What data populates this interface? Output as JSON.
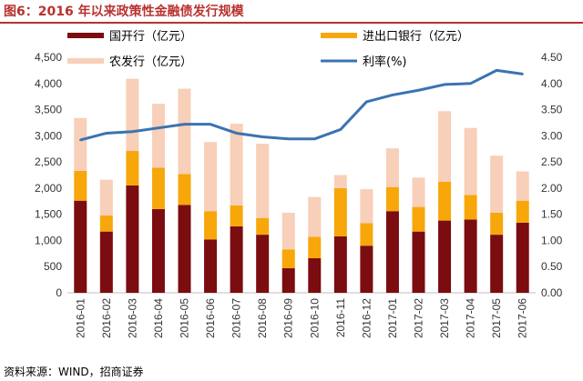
{
  "title": "图6：2016 年以来政策性金融债发行规模",
  "source": "资料来源：WIND，招商证券",
  "colors": {
    "guokai": "#7b0c10",
    "jinchukou": "#f7a70a",
    "nongfa": "#f8cfb8",
    "rate": "#3b73b1",
    "title": "#b8312f"
  },
  "chart_data": {
    "type": "bar",
    "stacked": true,
    "categories": [
      "2016-01",
      "2016-02",
      "2016-03",
      "2016-04",
      "2016-05",
      "2016-06",
      "2016-07",
      "2016-08",
      "2016-09",
      "2016-10",
      "2016-11",
      "2016-12",
      "2017-01",
      "2017-02",
      "2017-03",
      "2017-04",
      "2017-05",
      "2017-06"
    ],
    "series": [
      {
        "name": "国开行（亿元）",
        "key": "guokai",
        "axis": "left",
        "values": [
          1760,
          1170,
          2050,
          1600,
          1680,
          1020,
          1270,
          1110,
          470,
          660,
          1080,
          900,
          1560,
          1170,
          1380,
          1400,
          1110,
          1340
        ]
      },
      {
        "name": "进出口银行（亿元）",
        "key": "jinchukou",
        "axis": "left",
        "values": [
          570,
          310,
          660,
          790,
          590,
          540,
          400,
          320,
          360,
          410,
          920,
          430,
          460,
          470,
          740,
          470,
          420,
          420
        ]
      },
      {
        "name": "农发行（亿元）",
        "key": "nongfa",
        "axis": "left",
        "values": [
          1010,
          680,
          1380,
          1220,
          1630,
          1320,
          1560,
          1420,
          700,
          760,
          250,
          650,
          740,
          560,
          1350,
          1280,
          1090,
          560
        ]
      },
      {
        "name": "利率(%)",
        "key": "rate",
        "type": "line",
        "axis": "right",
        "values": [
          2.92,
          3.05,
          3.08,
          3.15,
          3.22,
          3.22,
          3.05,
          2.98,
          2.94,
          2.94,
          3.12,
          3.65,
          3.78,
          3.87,
          3.98,
          4.0,
          4.25,
          4.18
        ]
      }
    ],
    "y_left": {
      "min": 0,
      "max": 4500,
      "step": 500,
      "ticks": [
        "0",
        "500",
        "1,000",
        "1,500",
        "2,000",
        "2,500",
        "3,000",
        "3,500",
        "4,000",
        "4,500"
      ]
    },
    "y_right": {
      "min": 0,
      "max": 4.5,
      "step": 0.5,
      "ticks": [
        "0.00",
        "0.50",
        "1.00",
        "1.50",
        "2.00",
        "2.50",
        "3.00",
        "3.50",
        "4.00",
        "4.50"
      ]
    },
    "legend": [
      {
        "label": "国开行（亿元）",
        "key": "guokai",
        "kind": "box"
      },
      {
        "label": "进出口银行（亿元）",
        "key": "jinchukou",
        "kind": "box"
      },
      {
        "label": "农发行（亿元）",
        "key": "nongfa",
        "kind": "box"
      },
      {
        "label": "利率(%)",
        "key": "rate",
        "kind": "line"
      }
    ],
    "legend_position": "top",
    "grid": false
  }
}
